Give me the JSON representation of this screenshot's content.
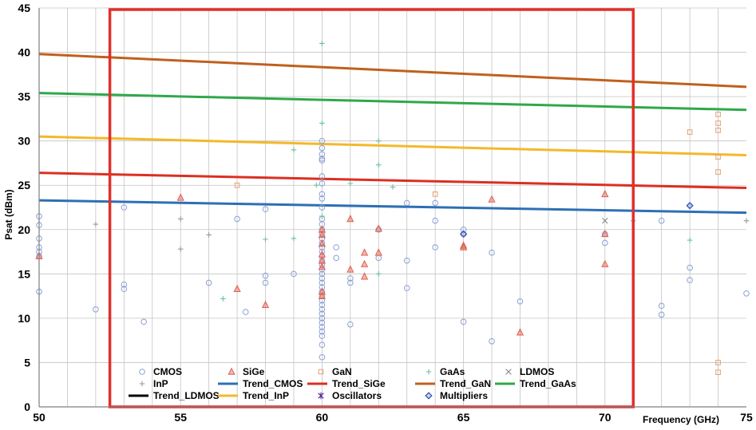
{
  "chart_data": {
    "type": "scatter",
    "xlabel": "Frequency (GHz)",
    "ylabel": "Psat (dBm)",
    "xlim": [
      50,
      75
    ],
    "ylim": [
      0,
      45
    ],
    "x_ticks": [
      50,
      55,
      60,
      65,
      70,
      75
    ],
    "y_ticks": [
      0,
      5,
      10,
      15,
      20,
      25,
      30,
      35,
      40,
      45
    ],
    "grid": "vertical every 1 GHz, horizontal every 5 dBm",
    "legend_position": "bottom inside",
    "highlight_box": {
      "x_range": [
        52.5,
        71.0
      ],
      "y_range": [
        0,
        45
      ],
      "color": "#e0302a"
    },
    "series": [
      {
        "name": "CMOS",
        "marker": "circle",
        "color": "#8aa0d8",
        "points": [
          [
            50,
            21.5
          ],
          [
            50,
            20.5
          ],
          [
            50,
            19
          ],
          [
            50,
            18
          ],
          [
            50,
            17.5
          ],
          [
            50,
            17
          ],
          [
            50,
            13
          ],
          [
            52,
            11
          ],
          [
            53,
            22.5
          ],
          [
            53,
            13.8
          ],
          [
            53,
            13.3
          ],
          [
            53.7,
            9.6
          ],
          [
            56,
            14
          ],
          [
            57,
            21.2
          ],
          [
            57.3,
            10.7
          ],
          [
            58,
            22.3
          ],
          [
            58,
            14.8
          ],
          [
            58,
            14
          ],
          [
            59,
            15
          ],
          [
            60,
            30
          ],
          [
            60,
            29.2
          ],
          [
            60,
            28.5
          ],
          [
            60,
            28
          ],
          [
            60,
            27.8
          ],
          [
            60,
            26
          ],
          [
            60,
            25.2
          ],
          [
            60,
            24
          ],
          [
            60,
            23.5
          ],
          [
            60,
            22.5
          ],
          [
            60,
            21.2
          ],
          [
            60,
            20.6
          ],
          [
            60,
            20
          ],
          [
            60,
            19.5
          ],
          [
            60,
            19
          ],
          [
            60,
            18.5
          ],
          [
            60,
            18
          ],
          [
            60,
            17.5
          ],
          [
            60,
            17
          ],
          [
            60,
            16.5
          ],
          [
            60,
            16
          ],
          [
            60,
            15.5
          ],
          [
            60,
            15
          ],
          [
            60,
            14.5
          ],
          [
            60,
            14
          ],
          [
            60,
            13.5
          ],
          [
            60,
            13
          ],
          [
            60,
            12.5
          ],
          [
            60,
            12
          ],
          [
            60,
            11.5
          ],
          [
            60,
            11
          ],
          [
            60,
            10.5
          ],
          [
            60,
            10
          ],
          [
            60,
            9.5
          ],
          [
            60,
            9
          ],
          [
            60,
            8.5
          ],
          [
            60,
            8
          ],
          [
            60,
            7
          ],
          [
            60,
            5.6
          ],
          [
            60.5,
            18
          ],
          [
            60.5,
            16.8
          ],
          [
            61,
            14.5
          ],
          [
            61,
            14
          ],
          [
            61,
            9.3
          ],
          [
            62,
            20
          ],
          [
            62,
            16.8
          ],
          [
            63,
            23
          ],
          [
            63,
            16.5
          ],
          [
            63,
            13.4
          ],
          [
            64,
            23
          ],
          [
            64,
            21
          ],
          [
            64,
            18
          ],
          [
            65,
            20
          ],
          [
            65,
            19.5
          ],
          [
            65,
            9.6
          ],
          [
            66,
            17.4
          ],
          [
            66,
            7.4
          ],
          [
            67,
            11.9
          ],
          [
            70,
            19.5
          ],
          [
            70,
            18.5
          ],
          [
            72,
            21
          ],
          [
            72,
            11.4
          ],
          [
            72,
            10.4
          ],
          [
            73,
            15.7
          ],
          [
            73,
            14.3
          ],
          [
            75,
            12.8
          ]
        ]
      },
      {
        "name": "SiGe",
        "marker": "triangle",
        "color": "#e06050",
        "points": [
          [
            50,
            17
          ],
          [
            55,
            23.6
          ],
          [
            57,
            13.3
          ],
          [
            58,
            11.5
          ],
          [
            60,
            20
          ],
          [
            60,
            19.4
          ],
          [
            60,
            18.4
          ],
          [
            60,
            17.2
          ],
          [
            60,
            16.5
          ],
          [
            60,
            15.8
          ],
          [
            60,
            13
          ],
          [
            60,
            12.5
          ],
          [
            61,
            21.2
          ],
          [
            61,
            15.5
          ],
          [
            61.5,
            17.4
          ],
          [
            61.5,
            16.1
          ],
          [
            61.5,
            14.7
          ],
          [
            62,
            20.1
          ],
          [
            62,
            17.4
          ],
          [
            65,
            18.2
          ],
          [
            65,
            18
          ],
          [
            66,
            23.4
          ],
          [
            67,
            8.4
          ],
          [
            70,
            24
          ],
          [
            70,
            19.5
          ],
          [
            70,
            16.1
          ]
        ]
      },
      {
        "name": "GaN",
        "marker": "square",
        "color": "#e0a070",
        "points": [
          [
            57,
            25
          ],
          [
            64,
            24
          ],
          [
            73,
            31
          ],
          [
            74,
            33
          ],
          [
            74,
            32
          ],
          [
            74,
            31.2
          ],
          [
            74,
            28.2
          ],
          [
            74,
            26.5
          ],
          [
            74,
            5
          ],
          [
            74,
            3.9
          ]
        ]
      },
      {
        "name": "GaAs",
        "marker": "plus",
        "color": "#6cc0a0",
        "points": [
          [
            56.5,
            12.2
          ],
          [
            58,
            18.9
          ],
          [
            59,
            29
          ],
          [
            59,
            19
          ],
          [
            59.8,
            25
          ],
          [
            60,
            41
          ],
          [
            60,
            32
          ],
          [
            60,
            21.5
          ],
          [
            61,
            25.2
          ],
          [
            62,
            30
          ],
          [
            62,
            27.3
          ],
          [
            62,
            15
          ],
          [
            62.5,
            24.8
          ],
          [
            73,
            18.8
          ]
        ]
      },
      {
        "name": "LDMOS",
        "marker": "cross",
        "color": "#888888",
        "points": [
          [
            70,
            21
          ]
        ]
      },
      {
        "name": "InP",
        "marker": "plus",
        "color": "#999999",
        "points": [
          [
            52,
            20.6
          ],
          [
            55,
            21.2
          ],
          [
            55,
            17.8
          ],
          [
            56,
            19.4
          ],
          [
            71,
            21
          ],
          [
            75,
            21
          ]
        ]
      },
      {
        "name": "Oscillators",
        "marker": "asterisk",
        "color": "#5020a0",
        "points": []
      },
      {
        "name": "Multipliers",
        "marker": "diamond",
        "color": "#2850b0",
        "points": [
          [
            65,
            19.5
          ],
          [
            73,
            22.7
          ]
        ]
      }
    ],
    "trends": [
      {
        "name": "Trend_CMOS",
        "color": "#2e6fb5",
        "x": [
          50,
          75
        ],
        "y": [
          23.3,
          21.9
        ]
      },
      {
        "name": "Trend_SiGe",
        "color": "#dc2f20",
        "x": [
          50,
          75
        ],
        "y": [
          26.4,
          24.7
        ]
      },
      {
        "name": "Trend_GaN",
        "color": "#c0601e",
        "x": [
          50,
          75
        ],
        "y": [
          39.8,
          36.1
        ]
      },
      {
        "name": "Trend_LDMOS",
        "color": "#000000",
        "x": [],
        "y": []
      },
      {
        "name": "Trend_InP",
        "color": "#f4b82a",
        "x": [
          50,
          75
        ],
        "y": [
          30.5,
          28.4
        ]
      },
      {
        "name": "Trend_GaAs",
        "color": "#2fa84a",
        "x": [
          50,
          75
        ],
        "y": [
          35.4,
          33.5
        ]
      }
    ],
    "legend": [
      [
        "CMOS",
        "SiGe",
        "GaN",
        "GaAs",
        "LDMOS"
      ],
      [
        "InP",
        "Trend_CMOS",
        "Trend_SiGe",
        "Trend_GaN",
        "Trend_GaAs"
      ],
      [
        "Trend_LDMOS",
        "Trend_InP",
        "Oscillators",
        "Multipliers"
      ]
    ]
  }
}
